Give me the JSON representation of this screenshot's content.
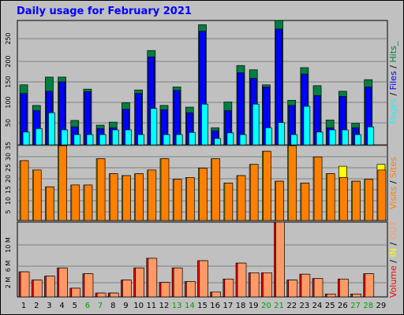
{
  "chart_data": {
    "type": "bar",
    "title": "Daily usage for February 2021",
    "days": [
      "1",
      "2",
      "3",
      "4",
      "5",
      "6",
      "7",
      "8",
      "9",
      "10",
      "11",
      "12",
      "13",
      "14",
      "15",
      "16",
      "17",
      "18",
      "19",
      "20",
      "21",
      "22",
      "23",
      "24",
      "25",
      "26",
      "27",
      "28",
      "29"
    ],
    "weekend_days": [
      "6",
      "7",
      "13",
      "14",
      "20",
      "21",
      "27",
      "28"
    ],
    "colors": {
      "hits": "#008040",
      "files": "#0000ff",
      "pages": "#00ffff",
      "visits": "#ff8000",
      "sites": "#ffff00",
      "kbin": "#ff0000",
      "kbout": "#ff9966",
      "title": "#0000ff",
      "weekend": "#00a000",
      "gridline": "#808080",
      "plotbg": "#c0c0c0"
    },
    "panels": [
      {
        "name": "pages-files-hits",
        "ylim": [
          0,
          290
        ],
        "y_ticks": [
          "50",
          "100",
          "150",
          "200",
          "250"
        ],
        "legend": [
          "Pages",
          "/",
          "Files",
          "/",
          "Hits",
          "_"
        ],
        "series": [
          {
            "name": "Hits",
            "values": [
              140,
              92,
              158,
              158,
              57,
              130,
              46,
              53,
              98,
              128,
              220,
              92,
              135,
              88,
              280,
              40,
              100,
              185,
              175,
              140,
              290,
              104,
              180,
              138,
              58,
              125,
              50,
              152,
              0
            ]
          },
          {
            "name": "Files",
            "values": [
              120,
              80,
              125,
              147,
              42,
              124,
              38,
              40,
              83,
              120,
              205,
              82,
              127,
              75,
              265,
              33,
              80,
              168,
              155,
              135,
              270,
              92,
              165,
              115,
              40,
              113,
              40,
              135,
              0
            ]
          },
          {
            "name": "Pages",
            "values": [
              30,
              38,
              75,
              35,
              24,
              24,
              24,
              35,
              35,
              24,
              85,
              24,
              24,
              29,
              95,
              15,
              28,
              24,
              95,
              40,
              52,
              24,
              90,
              30,
              35,
              35,
              24,
              42,
              0
            ]
          }
        ]
      },
      {
        "name": "visits-sites",
        "ylim": [
          0,
          40
        ],
        "y_ticks": [
          "5",
          "10",
          "15",
          "20",
          "25",
          "30",
          "35"
        ],
        "legend": [
          "Visits",
          "/",
          "Sites"
        ],
        "series": [
          {
            "name": "Sites",
            "values": [
              32,
              27,
              18,
              40,
              19,
              19,
              33,
              25,
              24,
              25,
              27,
              33,
              22,
              23,
              28,
              33,
              20,
              24,
              30,
              37,
              21,
              40,
              20,
              34,
              25,
              29,
              21,
              22,
              30
            ]
          },
          {
            "name": "Visits",
            "values": [
              32,
              27,
              18,
              40,
              19,
              19,
              33,
              25,
              24,
              25,
              27,
              33,
              22,
              23,
              28,
              33,
              20,
              24,
              30,
              37,
              21,
              40,
              20,
              34,
              25,
              23,
              21,
              22,
              27
            ]
          }
        ]
      },
      {
        "name": "volume",
        "ylim": [
          0,
          15.5
        ],
        "y_ticks": [
          "2 M",
          "6 M",
          "10 M"
        ],
        "legend": [
          "Volume",
          "/",
          "IN",
          "/",
          "OUT"
        ],
        "series": [
          {
            "name": "IN",
            "values": [
              5.2,
              3.5,
              4.3,
              6.0,
              1.8,
              4.8,
              0.8,
              0.8,
              3.5,
              6.0,
              8.0,
              3.0,
              6.0,
              3.2,
              7.5,
              1.0,
              3.7,
              7.0,
              5.0,
              5.0,
              15.5,
              3.5,
              4.7,
              3.8,
              0.6,
              3.7,
              0.6,
              4.8,
              0
            ]
          },
          {
            "name": "OUT",
            "values": [
              5.2,
              3.5,
              4.3,
              6.0,
              1.8,
              4.8,
              0.8,
              0.8,
              3.5,
              6.0,
              8.0,
              3.0,
              6.0,
              3.2,
              7.5,
              1.0,
              3.7,
              7.0,
              5.0,
              5.0,
              15.5,
              3.5,
              4.7,
              3.8,
              0.6,
              3.7,
              0.6,
              4.8,
              0
            ]
          }
        ]
      }
    ]
  }
}
